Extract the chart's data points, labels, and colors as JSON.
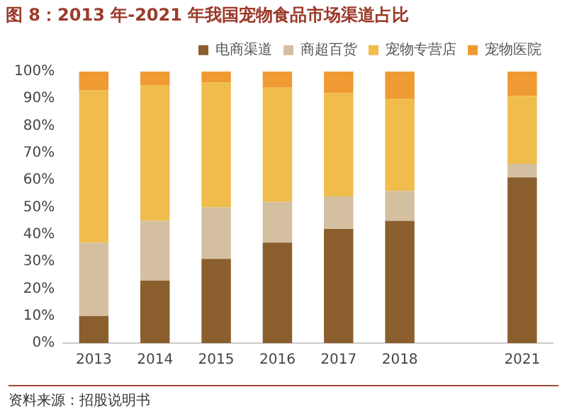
{
  "chart_data": {
    "type": "bar",
    "title": "图 8：2013 年-2021 年我国宠物食品市场渠道占比",
    "stacked": true,
    "legend": "top right",
    "categories": [
      "2013",
      "2014",
      "2015",
      "2016",
      "2017",
      "2018",
      null,
      "2021"
    ],
    "series": [
      {
        "name": "电商渠道",
        "color": "#8b5e2e",
        "values": [
          10,
          23,
          31,
          37,
          42,
          45,
          null,
          61
        ]
      },
      {
        "name": "商超百货",
        "color": "#d4c0a0",
        "values": [
          27,
          22,
          19,
          15,
          12,
          11,
          null,
          5
        ]
      },
      {
        "name": "宠物专营店",
        "color": "#f0bc4c",
        "values": [
          56,
          50,
          46,
          42,
          38,
          34,
          null,
          25
        ]
      },
      {
        "name": "宠物医院",
        "color": "#ef9a32",
        "values": [
          7,
          5,
          4,
          6,
          8,
          10,
          null,
          9
        ]
      }
    ],
    "ylim": [
      0,
      100
    ],
    "yticks": [
      {
        "value": 0,
        "label": "0%"
      },
      {
        "value": 10,
        "label": "10%"
      },
      {
        "value": 20,
        "label": "20%"
      },
      {
        "value": 30,
        "label": "30%"
      },
      {
        "value": 40,
        "label": "40%"
      },
      {
        "value": 50,
        "label": "50%"
      },
      {
        "value": 60,
        "label": "60%"
      },
      {
        "value": 70,
        "label": "70%"
      },
      {
        "value": 80,
        "label": "80%"
      },
      {
        "value": 90,
        "label": "90%"
      },
      {
        "value": 100,
        "label": "100%"
      }
    ],
    "annotations": [
      "资料来源：招股说明书"
    ]
  }
}
